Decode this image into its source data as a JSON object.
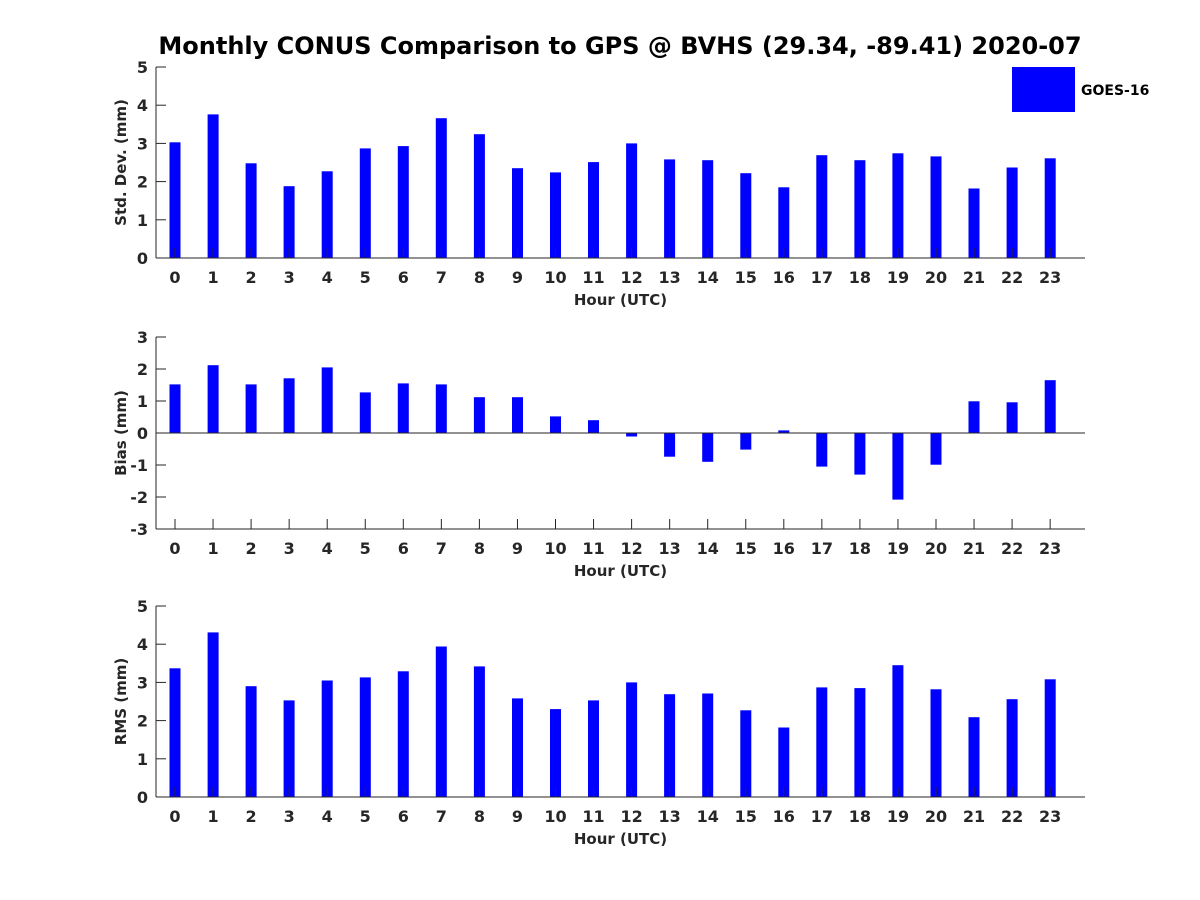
{
  "chart_data": {
    "type": "bar",
    "title": "Monthly CONUS Comparison to GPS @ BVHS (29.34, -89.41) 2020-07",
    "legend": {
      "entries": [
        "GOES-16"
      ],
      "placement": "top-right",
      "color": "#0000ff"
    },
    "x": [
      0,
      1,
      2,
      3,
      4,
      5,
      6,
      7,
      8,
      9,
      10,
      11,
      12,
      13,
      14,
      15,
      16,
      17,
      18,
      19,
      20,
      21,
      22,
      23
    ],
    "categories": [
      "0",
      "1",
      "2",
      "3",
      "4",
      "5",
      "6",
      "7",
      "8",
      "9",
      "10",
      "11",
      "12",
      "13",
      "14",
      "15",
      "16",
      "17",
      "18",
      "19",
      "20",
      "21",
      "22",
      "23"
    ],
    "panels": [
      {
        "id": "std",
        "xlabel": "Hour (UTC)",
        "ylabel": "Std. Dev. (mm)",
        "ylim": [
          0,
          5
        ],
        "yticks": [
          0,
          1,
          2,
          3,
          4,
          5
        ],
        "series": [
          {
            "name": "GOES-16",
            "color": "#0000ff",
            "values": [
              3.03,
              3.76,
              2.48,
              1.88,
              2.27,
              2.87,
              2.93,
              3.66,
              3.24,
              2.35,
              2.24,
              2.51,
              3.0,
              2.58,
              2.56,
              2.22,
              1.85,
              2.69,
              2.56,
              2.74,
              2.66,
              1.82,
              2.37,
              2.61
            ]
          }
        ]
      },
      {
        "id": "bias",
        "xlabel": "Hour (UTC)",
        "ylabel": "Bias (mm)",
        "ylim": [
          -3,
          3
        ],
        "yticks": [
          -3,
          -2,
          -1,
          0,
          1,
          2,
          3
        ],
        "series": [
          {
            "name": "GOES-16",
            "color": "#0000ff",
            "values": [
              1.52,
              2.12,
              1.52,
              1.71,
              2.05,
              1.27,
              1.55,
              1.52,
              1.12,
              1.12,
              0.52,
              0.4,
              -0.11,
              -0.74,
              -0.9,
              -0.52,
              0.08,
              -1.05,
              -1.3,
              -2.08,
              -0.99,
              0.99,
              0.96,
              1.65
            ]
          }
        ]
      },
      {
        "id": "rms",
        "xlabel": "Hour (UTC)",
        "ylabel": "RMS (mm)",
        "ylim": [
          0,
          5
        ],
        "yticks": [
          0,
          1,
          2,
          3,
          4,
          5
        ],
        "series": [
          {
            "name": "GOES-16",
            "color": "#0000ff",
            "values": [
              3.37,
              4.31,
              2.9,
              2.53,
              3.05,
              3.13,
              3.29,
              3.94,
              3.42,
              2.58,
              2.3,
              2.53,
              3.0,
              2.69,
              2.71,
              2.27,
              1.82,
              2.87,
              2.85,
              3.45,
              2.82,
              2.09,
              2.56,
              3.08
            ]
          }
        ]
      }
    ]
  }
}
